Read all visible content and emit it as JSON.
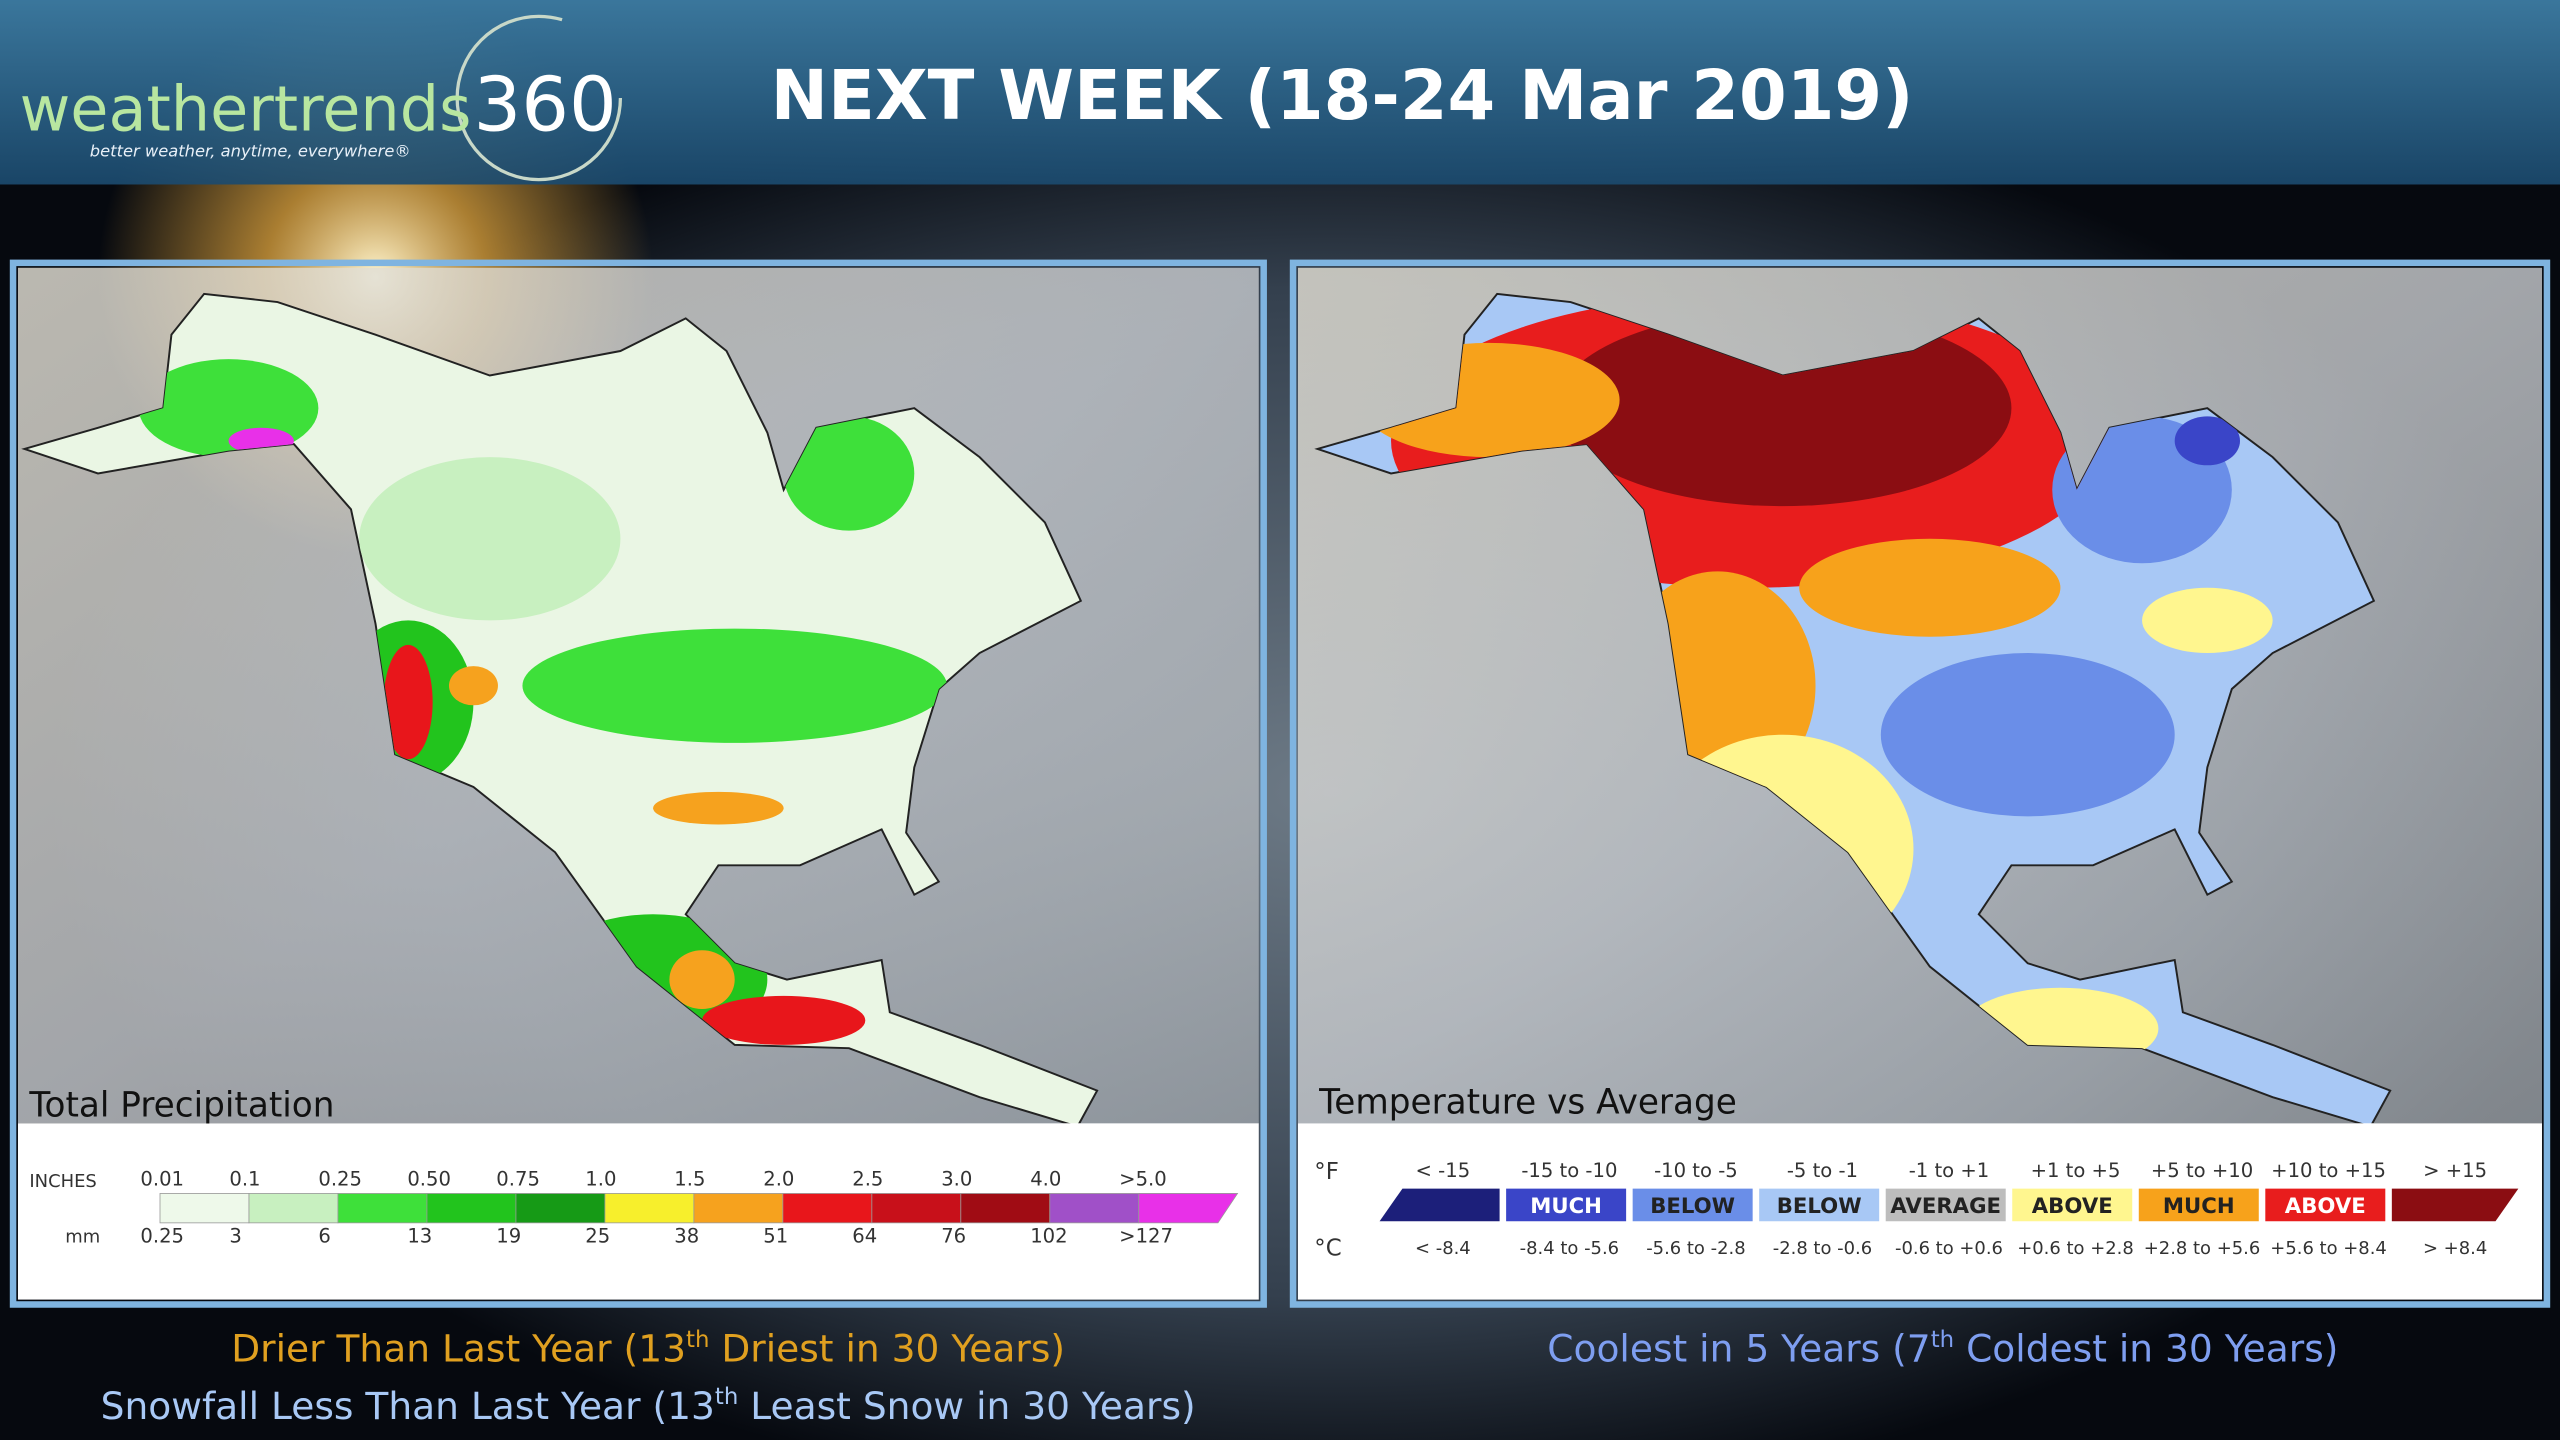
{
  "header": {
    "logo": "weathertrends",
    "logo_number": "360",
    "tagline": "better weather, anytime, everywhere®",
    "title": "NEXT WEEK (18-24 Mar 2019)"
  },
  "precipitation_panel": {
    "label": "Total Precipitation",
    "legend": {
      "unit_top": "INCHES",
      "unit_bottom": "mm",
      "inches": [
        "0.01",
        "0.1",
        "0.25",
        "0.50",
        "0.75",
        "1.0",
        "1.5",
        "2.0",
        "2.5",
        "3.0",
        "4.0",
        ">5.0"
      ],
      "mm": [
        "0.25",
        "3",
        "6",
        "13",
        "19",
        "25",
        "38",
        "51",
        "64",
        "76",
        "102",
        ">127"
      ],
      "colors": [
        "#eef9ea",
        "#c8f0c0",
        "#3ee03a",
        "#22c41d",
        "#169a16",
        "#f7ef2c",
        "#f6a21e",
        "#e8161b",
        "#c8101a",
        "#a00c14",
        "#a050c8",
        "#e830e8"
      ]
    }
  },
  "temperature_panel": {
    "label": "Temperature vs Average",
    "legend": {
      "unit_top": "°F",
      "unit_bottom": "°C",
      "cells": [
        {
          "f": "< -15",
          "c": "< -8.4",
          "color": "#1c1f7a"
        },
        {
          "f": "-15 to -10",
          "c": "-8.4 to -5.6",
          "color": "#3a45c8",
          "tag": "MUCH"
        },
        {
          "f": "-10 to -5",
          "c": "-5.6 to -2.8",
          "color": "#6a8ee8",
          "tag": "BELOW"
        },
        {
          "f": "-5 to -1",
          "c": "-2.8 to -0.6",
          "color": "#a8c8f5",
          "tag": "BELOW"
        },
        {
          "f": "-1 to +1",
          "c": "-0.6 to +0.6",
          "color": "#bdbdbd",
          "tag": "AVERAGE"
        },
        {
          "f": "+1 to +5",
          "c": "+0.6 to +2.8",
          "color": "#fff68f",
          "tag": "ABOVE"
        },
        {
          "f": "+5 to +10",
          "c": "+2.8 to +5.6",
          "color": "#f7a21b",
          "tag": "MUCH"
        },
        {
          "f": "+10 to +15",
          "c": "+5.6 to +8.4",
          "color": "#e81d1d",
          "tag": "ABOVE"
        },
        {
          "f": "> +15",
          "c": "> +8.4",
          "color": "#8b0d12"
        }
      ]
    }
  },
  "footer": {
    "left": [
      {
        "before": "Drier Than Last Year (13",
        "sup": "th",
        "after": " Driest in 30 Years)"
      },
      {
        "before": "Snowfall Less Than Last Year (13",
        "sup": "th",
        "after": " Least Snow in 30 Years)"
      }
    ],
    "right": [
      {
        "before": "Coolest in 5 Years (7",
        "sup": "th",
        "after": " Coldest in 30 Years)"
      }
    ]
  }
}
